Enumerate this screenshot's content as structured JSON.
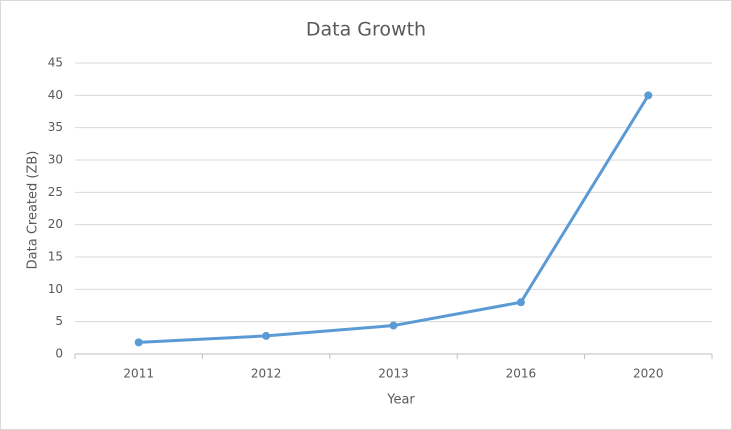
{
  "chart_data": {
    "type": "line",
    "title": "Data Growth",
    "x_label": "Year",
    "y_label": "Data Created (ZB)",
    "categories": [
      "2011",
      "2012",
      "2013",
      "2016",
      "2020"
    ],
    "series": [
      {
        "name": "Data Created (ZB)",
        "color": "#5b9bd5",
        "values": [
          1.8,
          2.8,
          4.4,
          8,
          40
        ]
      }
    ],
    "ylim": [
      0,
      45
    ],
    "yticks": [
      0,
      5,
      10,
      15,
      20,
      25,
      30,
      35,
      40,
      45
    ],
    "grid": true
  }
}
